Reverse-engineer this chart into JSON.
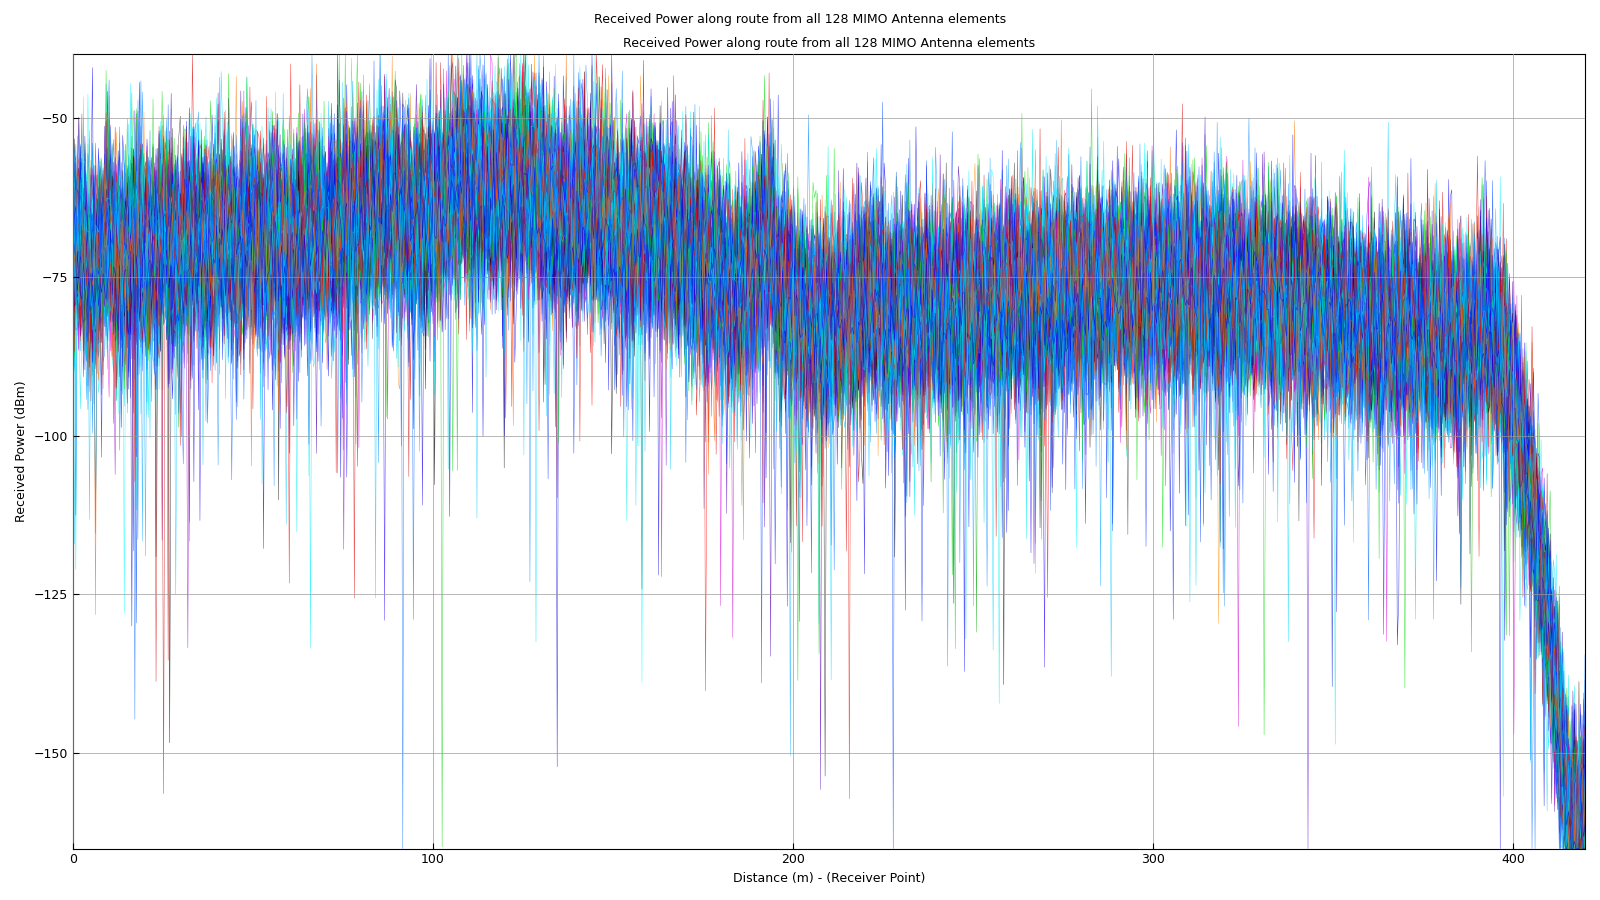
{
  "title_window": "Received Power along route from all 128 MIMO Antenna elements",
  "title_plot": "Received Power along route from all 128 MIMO Antenna elements",
  "xlabel": "Distance (m) - (Receiver Point)",
  "ylabel": "Received Power (dBm)",
  "xlim": [
    0,
    420
  ],
  "ylim": [
    -165,
    -40
  ],
  "xticks": [
    0,
    100,
    200,
    300,
    400
  ],
  "yticks": [
    -50,
    -75,
    -100,
    -125,
    -150
  ],
  "n_points": 1000,
  "n_elements": 128,
  "bg_color": "#ffffff",
  "plot_bg": "#ffffff",
  "grid_color": "#999999",
  "seed": 42
}
